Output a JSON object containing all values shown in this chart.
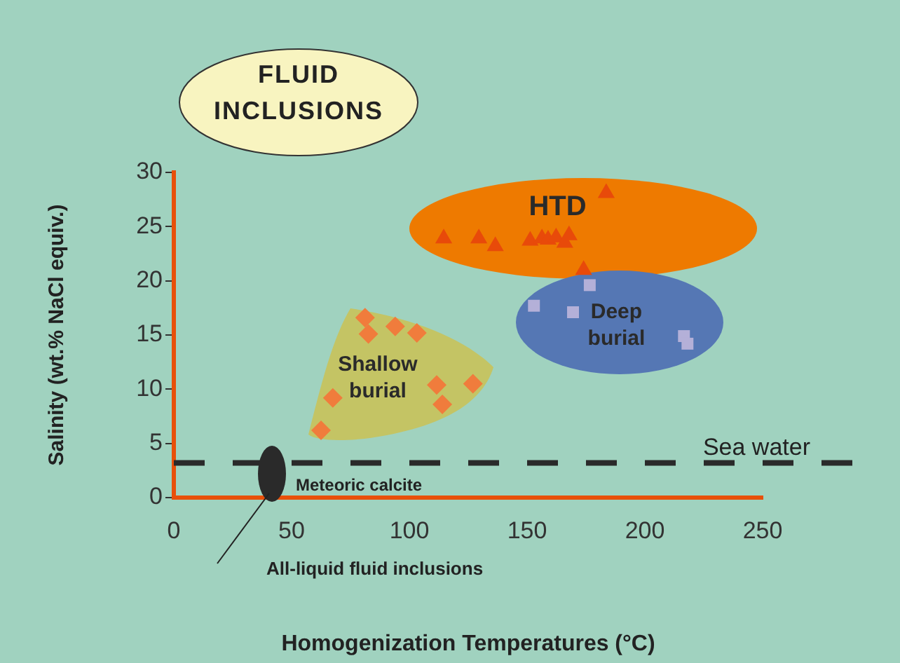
{
  "chart_data": {
    "type": "scatter",
    "xlabel": "Homogenization Temperatures (°C)",
    "ylabel": "Salinity (wt.% NaCl equiv.)",
    "xlim": [
      0,
      250
    ],
    "xticks": [
      0,
      50,
      100,
      150,
      200,
      250
    ],
    "ylim": [
      0,
      30
    ],
    "yticks": [
      0,
      5,
      10,
      15,
      20,
      25,
      30
    ],
    "grid": false,
    "legend": false,
    "series": [
      {
        "name": "HTD",
        "color": "#e84a0a",
        "marker": "triangle",
        "x": [
          114.6,
          129.5,
          136.5,
          151.3,
          156.3,
          158.9,
          162.3,
          166,
          167.8,
          183.6,
          174
        ],
        "values": [
          23.9,
          23.9,
          23.2,
          23.7,
          23.9,
          23.8,
          24,
          23.5,
          24.2,
          28.1,
          21
        ]
      },
      {
        "name": "Shallow burial",
        "color": "#f07c3c",
        "marker": "diamond",
        "x": [
          81.2,
          82.6,
          94,
          103.2,
          111.6,
          127,
          114,
          67.5,
          62.5
        ],
        "values": [
          16.6,
          15.1,
          15.8,
          15.2,
          10.4,
          10.5,
          8.6,
          9.2,
          6.2
        ]
      },
      {
        "name": "Deep burial",
        "color": "#b4b0d8",
        "marker": "square",
        "x": [
          176.6,
          152.9,
          169.5,
          216.6,
          218.1
        ],
        "values": [
          19.6,
          17.7,
          17.1,
          14.9,
          14.2
        ]
      }
    ],
    "ref_lines": [
      {
        "axis": "y",
        "value": 3.2,
        "label": "Sea water",
        "color": "#2a2a2a",
        "line_style": "dashed"
      }
    ],
    "annotations": [
      "FLUID INCLUSIONS",
      "Meteoric calcite",
      "All-liquid fluid inclusions"
    ]
  }
}
